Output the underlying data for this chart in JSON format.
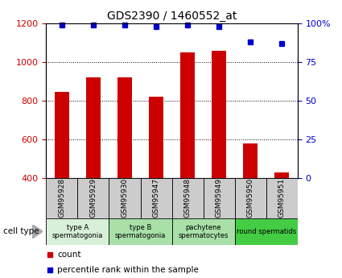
{
  "title": "GDS2390 / 1460552_at",
  "samples": [
    "GSM95928",
    "GSM95929",
    "GSM95930",
    "GSM95947",
    "GSM95948",
    "GSM95949",
    "GSM95950",
    "GSM95951"
  ],
  "counts": [
    845,
    920,
    920,
    820,
    1050,
    1060,
    580,
    430
  ],
  "percentiles": [
    99,
    99,
    99,
    98,
    99,
    98,
    88,
    87
  ],
  "ylim_left": [
    400,
    1200
  ],
  "ylim_right": [
    0,
    100
  ],
  "yticks_left": [
    400,
    600,
    800,
    1000,
    1200
  ],
  "yticks_right": [
    0,
    25,
    50,
    75,
    100
  ],
  "bar_color": "#cc0000",
  "dot_color": "#0000cc",
  "bar_bottom": 400,
  "group_data": [
    {
      "label": "type A\nspermatogonia",
      "start": 0,
      "end": 2,
      "color": "#d8f0d8"
    },
    {
      "label": "type B\nspermatogonia",
      "start": 2,
      "end": 4,
      "color": "#a8e0a8"
    },
    {
      "label": "pachytene\nspermatocytes",
      "start": 4,
      "end": 6,
      "color": "#a8e0a8"
    },
    {
      "label": "round spermatids",
      "start": 6,
      "end": 8,
      "color": "#44cc44"
    }
  ],
  "cell_type_label": "cell type",
  "legend_count_label": "count",
  "legend_pct_label": "percentile rank within the sample",
  "sample_box_color": "#cccccc",
  "tick_color_left": "#cc0000",
  "tick_color_right": "#0000cc"
}
